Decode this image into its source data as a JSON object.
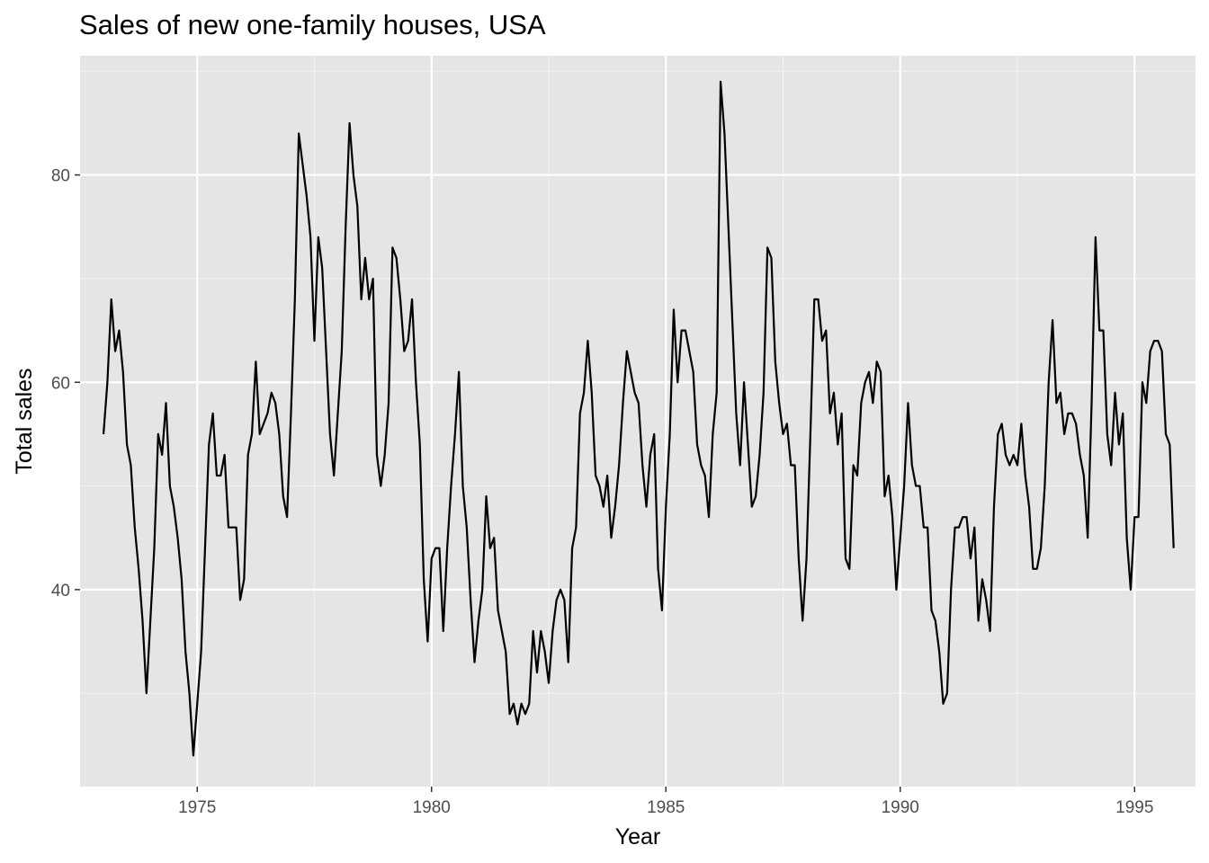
{
  "chart_data": {
    "type": "line",
    "title": "Sales of new one-family houses, USA",
    "xlabel": "Year",
    "ylabel": "Total sales",
    "xlim": [
      1972.5,
      1996.3
    ],
    "ylim": [
      21.0,
      91.5
    ],
    "x_ticks": [
      1975,
      1980,
      1985,
      1990,
      1995
    ],
    "y_ticks": [
      40,
      60,
      80
    ],
    "grid": true,
    "x_start": "1973-01",
    "frequency": "monthly",
    "series": [
      {
        "values": [
          55,
          60,
          68,
          63,
          65,
          61,
          54,
          52,
          46,
          42,
          37,
          30,
          37,
          44,
          55,
          53,
          58,
          50,
          48,
          45,
          41,
          34,
          30,
          24,
          29,
          34,
          44,
          54,
          57,
          51,
          51,
          53,
          46,
          46,
          46,
          39,
          41,
          53,
          55,
          62,
          55,
          56,
          57,
          59,
          58,
          55,
          49,
          47,
          57,
          68,
          84,
          81,
          78,
          74,
          64,
          74,
          71,
          63,
          55,
          51,
          57,
          63,
          75,
          85,
          80,
          77,
          68,
          72,
          68,
          70,
          53,
          50,
          53,
          58,
          73,
          72,
          68,
          63,
          64,
          68,
          60,
          54,
          41,
          35,
          43,
          44,
          44,
          36,
          44,
          50,
          55,
          61,
          50,
          46,
          39,
          33,
          37,
          40,
          49,
          44,
          45,
          38,
          36,
          34,
          28,
          29,
          27,
          29,
          28,
          29,
          36,
          32,
          36,
          34,
          31,
          36,
          39,
          40,
          39,
          33,
          44,
          46,
          57,
          59,
          64,
          59,
          51,
          50,
          48,
          51,
          45,
          48,
          52,
          58,
          63,
          61,
          59,
          58,
          52,
          48,
          53,
          55,
          42,
          38,
          48,
          55,
          67,
          60,
          65,
          65,
          63,
          61,
          54,
          52,
          51,
          47,
          55,
          59,
          89,
          84,
          75,
          66,
          57,
          52,
          60,
          54,
          48,
          49,
          53,
          59,
          73,
          72,
          62,
          58,
          55,
          56,
          52,
          52,
          43,
          37,
          43,
          55,
          68,
          68,
          64,
          65,
          57,
          59,
          54,
          57,
          43,
          42,
          52,
          51,
          58,
          60,
          61,
          58,
          62,
          61,
          49,
          51,
          47,
          40,
          45,
          50,
          58,
          52,
          50,
          50,
          46,
          46,
          38,
          37,
          34,
          29,
          30,
          40,
          46,
          46,
          47,
          47,
          43,
          46,
          37,
          41,
          39,
          36,
          48,
          55,
          56,
          53,
          52,
          53,
          52,
          56,
          51,
          48,
          42,
          42,
          44,
          50,
          60,
          66,
          58,
          59,
          55,
          57,
          57,
          56,
          53,
          51,
          45,
          58,
          74,
          65,
          65,
          55,
          52,
          59,
          54,
          57,
          45,
          40,
          47,
          47,
          60,
          58,
          63,
          64,
          64,
          63,
          55,
          54,
          44
        ]
      }
    ]
  }
}
